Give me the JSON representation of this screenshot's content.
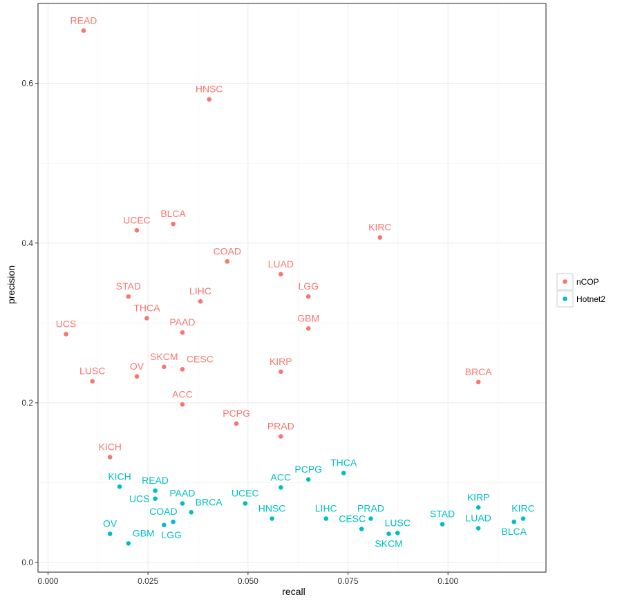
{
  "chart_data": {
    "type": "scatter",
    "title": "",
    "xlabel": "recall",
    "ylabel": "precision",
    "xlim": [
      -0.0025,
      0.1245
    ],
    "ylim": [
      -0.012,
      0.7
    ],
    "x_ticks": [
      0.0,
      0.025,
      0.05,
      0.075,
      0.1
    ],
    "x_tick_labels": [
      "0.000",
      "0.025",
      "0.050",
      "0.075",
      "0.100"
    ],
    "y_ticks": [
      0.0,
      0.2,
      0.4,
      0.6
    ],
    "y_tick_labels": [
      "0.0",
      "0.2",
      "0.4",
      "0.6"
    ],
    "grid": true,
    "legend_position": "right",
    "series": [
      {
        "name": "nCOP",
        "color": "#F8766D",
        "points": [
          {
            "label": "READ",
            "x": 0.0089,
            "y": 0.666,
            "label_pos": "above"
          },
          {
            "label": "HNSC",
            "x": 0.0403,
            "y": 0.58,
            "label_pos": "above"
          },
          {
            "label": "UCEC",
            "x": 0.0222,
            "y": 0.416,
            "label_pos": "above"
          },
          {
            "label": "BLCA",
            "x": 0.0313,
            "y": 0.424,
            "label_pos": "above"
          },
          {
            "label": "KIRC",
            "x": 0.083,
            "y": 0.407,
            "label_pos": "above"
          },
          {
            "label": "COAD",
            "x": 0.0448,
            "y": 0.377,
            "label_pos": "above"
          },
          {
            "label": "LUAD",
            "x": 0.0582,
            "y": 0.361,
            "label_pos": "above"
          },
          {
            "label": "STAD",
            "x": 0.0201,
            "y": 0.333,
            "label_pos": "above"
          },
          {
            "label": "LGG",
            "x": 0.0651,
            "y": 0.333,
            "label_pos": "above"
          },
          {
            "label": "LIHC",
            "x": 0.0381,
            "y": 0.327,
            "label_pos": "above"
          },
          {
            "label": "THCA",
            "x": 0.0247,
            "y": 0.306,
            "label_pos": "above"
          },
          {
            "label": "UCS",
            "x": 0.0045,
            "y": 0.286,
            "label_pos": "above"
          },
          {
            "label": "PAAD",
            "x": 0.0336,
            "y": 0.288,
            "label_pos": "above"
          },
          {
            "label": "GBM",
            "x": 0.0651,
            "y": 0.293,
            "label_pos": "above"
          },
          {
            "label": "SKCM",
            "x": 0.029,
            "y": 0.245,
            "label_pos": "above"
          },
          {
            "label": "CESC",
            "x": 0.0336,
            "y": 0.242,
            "label_pos": "above-right"
          },
          {
            "label": "KIRP",
            "x": 0.0582,
            "y": 0.239,
            "label_pos": "above"
          },
          {
            "label": "OV",
            "x": 0.0222,
            "y": 0.233,
            "label_pos": "above"
          },
          {
            "label": "LUSC",
            "x": 0.0111,
            "y": 0.227,
            "label_pos": "above"
          },
          {
            "label": "BRCA",
            "x": 0.1076,
            "y": 0.226,
            "label_pos": "above"
          },
          {
            "label": "ACC",
            "x": 0.0336,
            "y": 0.198,
            "label_pos": "above"
          },
          {
            "label": "PCPG",
            "x": 0.0471,
            "y": 0.174,
            "label_pos": "above"
          },
          {
            "label": "PRAD",
            "x": 0.0582,
            "y": 0.158,
            "label_pos": "above"
          },
          {
            "label": "KICH",
            "x": 0.0155,
            "y": 0.132,
            "label_pos": "above"
          }
        ]
      },
      {
        "name": "Hotnet2",
        "color": "#00BFC4",
        "points": [
          {
            "label": "THCA",
            "x": 0.0739,
            "y": 0.112,
            "label_pos": "above"
          },
          {
            "label": "PCPG",
            "x": 0.0651,
            "y": 0.104,
            "label_pos": "above"
          },
          {
            "label": "KICH",
            "x": 0.0179,
            "y": 0.095,
            "label_pos": "above"
          },
          {
            "label": "ACC",
            "x": 0.0582,
            "y": 0.094,
            "label_pos": "above"
          },
          {
            "label": "READ",
            "x": 0.0268,
            "y": 0.09,
            "label_pos": "above"
          },
          {
            "label": "UCS",
            "x": 0.0268,
            "y": 0.08,
            "label_pos": "left"
          },
          {
            "label": "PAAD",
            "x": 0.0336,
            "y": 0.074,
            "label_pos": "above"
          },
          {
            "label": "BRCA",
            "x": 0.0358,
            "y": 0.063,
            "label_pos": "above-right"
          },
          {
            "label": "UCEC",
            "x": 0.0493,
            "y": 0.074,
            "label_pos": "above"
          },
          {
            "label": "KIRP",
            "x": 0.1076,
            "y": 0.069,
            "label_pos": "above"
          },
          {
            "label": "HNSC",
            "x": 0.056,
            "y": 0.055,
            "label_pos": "above"
          },
          {
            "label": "LIHC",
            "x": 0.0695,
            "y": 0.055,
            "label_pos": "above"
          },
          {
            "label": "PRAD",
            "x": 0.0807,
            "y": 0.055,
            "label_pos": "above"
          },
          {
            "label": "KIRC",
            "x": 0.1188,
            "y": 0.055,
            "label_pos": "above"
          },
          {
            "label": "COAD",
            "x": 0.0313,
            "y": 0.051,
            "label_pos": "above-left"
          },
          {
            "label": "BLCA",
            "x": 0.1165,
            "y": 0.051,
            "label_pos": "below"
          },
          {
            "label": "STAD",
            "x": 0.0986,
            "y": 0.048,
            "label_pos": "above"
          },
          {
            "label": "LGG",
            "x": 0.029,
            "y": 0.047,
            "label_pos": "below-right"
          },
          {
            "label": "LUAD",
            "x": 0.1076,
            "y": 0.043,
            "label_pos": "above"
          },
          {
            "label": "CESC",
            "x": 0.0784,
            "y": 0.042,
            "label_pos": "above-left"
          },
          {
            "label": "LUSC",
            "x": 0.0874,
            "y": 0.037,
            "label_pos": "above"
          },
          {
            "label": "SKCM",
            "x": 0.0852,
            "y": 0.036,
            "label_pos": "below"
          },
          {
            "label": "OV",
            "x": 0.0155,
            "y": 0.036,
            "label_pos": "above"
          },
          {
            "label": "GBM",
            "x": 0.0201,
            "y": 0.024,
            "label_pos": "above-right"
          }
        ]
      }
    ]
  }
}
